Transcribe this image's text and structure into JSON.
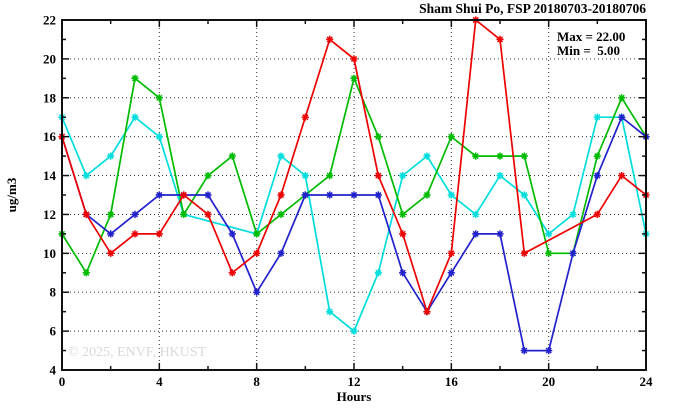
{
  "title": "Sham Shui Po, FSP 20180703-20180706",
  "legend": {
    "max_label": "Max = 22.00",
    "min_label": "Min =  5.00"
  },
  "watermark": "© 2025, ENVF, HKUST",
  "chart_data": {
    "type": "line",
    "title": "Sham Shui Po, FSP 20180703-20180706",
    "xlabel": "Hours",
    "ylabel": "ug/m3",
    "xlim": [
      0,
      24
    ],
    "ylim": [
      4,
      22
    ],
    "xticks_major": [
      0,
      4,
      8,
      12,
      16,
      20,
      24
    ],
    "xticks_minor_step": 2,
    "yticks_major": [
      4,
      6,
      8,
      10,
      12,
      14,
      16,
      18,
      20,
      22
    ],
    "yticks_minor_step": 1,
    "xtick_labels": [
      "0",
      "4",
      "8",
      "12",
      "16",
      "20",
      "24"
    ],
    "ytick_labels": [
      "4",
      "6",
      "8",
      "10",
      "12",
      "14",
      "16",
      "18",
      "20",
      "22"
    ],
    "grid": {
      "style": "dotted",
      "x_at": [
        4,
        8,
        12,
        16,
        20
      ],
      "y_at": [
        6,
        8,
        10,
        12,
        14,
        16,
        18,
        20
      ]
    },
    "legend_position": "top-right-inside",
    "marker": "asterisk",
    "x": [
      0,
      1,
      2,
      3,
      4,
      5,
      6,
      7,
      8,
      9,
      10,
      11,
      12,
      13,
      14,
      15,
      16,
      17,
      18,
      19,
      20,
      21,
      22,
      23,
      24
    ],
    "series": [
      {
        "name": "cyan",
        "color": "#00dddd",
        "values": [
          17,
          14,
          15,
          17,
          16,
          12,
          null,
          null,
          11,
          15,
          14,
          7,
          6,
          9,
          14,
          15,
          13,
          12,
          14,
          13,
          11,
          12,
          17,
          17,
          11
        ]
      },
      {
        "name": "green",
        "color": "#00bb00",
        "values": [
          11,
          9,
          12,
          19,
          18,
          12,
          14,
          15,
          11,
          12,
          13,
          14,
          19,
          16,
          12,
          13,
          16,
          15,
          15,
          15,
          10,
          10,
          15,
          18,
          16
        ]
      },
      {
        "name": "blue",
        "color": "#2222cc",
        "values": [
          16,
          12,
          11,
          12,
          13,
          13,
          13,
          11,
          8,
          10,
          13,
          13,
          13,
          13,
          9,
          7,
          9,
          11,
          11,
          5,
          5,
          10,
          14,
          17,
          16
        ]
      },
      {
        "name": "red",
        "color": "#ee0000",
        "values": [
          16,
          12,
          10,
          11,
          11,
          13,
          12,
          9,
          10,
          13,
          17,
          21,
          20,
          14,
          11,
          7,
          10,
          22,
          21,
          10,
          null,
          null,
          12,
          14,
          13
        ]
      }
    ],
    "stats": {
      "max": 22.0,
      "min": 5.0
    }
  }
}
